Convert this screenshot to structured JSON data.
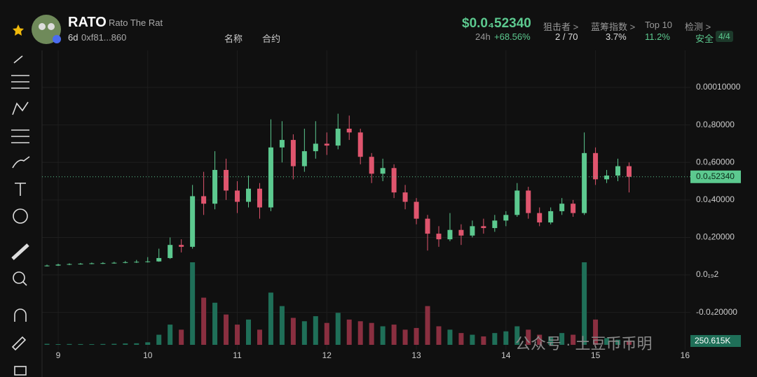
{
  "header": {
    "symbol": "RATO",
    "name": "Rato The Rat",
    "age": "6d",
    "address": "0xf81...860",
    "search_name": "名称",
    "search_contract": "合约",
    "price": "$0.0₄52340",
    "change_period": "24h",
    "change": "+68.56%",
    "snipers_label": "狙击者 >",
    "snipers": "2 / 70",
    "bluechip_label": "蓝筹指数 >",
    "bluechip": "3.7%",
    "top10_label": "Top 10",
    "top10": "11.2%",
    "check_label": "检测 >",
    "check_status": "安全",
    "check_score": "4/4"
  },
  "watermark": "公众号 · 土豆币币明",
  "chart_data": {
    "type": "candlestick",
    "x": [
      8.875,
      9,
      9.125,
      9.25,
      9.375,
      9.5,
      9.625,
      9.75,
      9.875,
      10,
      10.125,
      10.25,
      10.375,
      10.5,
      10.625,
      10.75,
      10.875,
      11,
      11.125,
      11.25,
      11.375,
      11.5,
      11.625,
      11.75,
      11.875,
      12,
      12.125,
      12.25,
      12.375,
      12.5,
      12.625,
      12.75,
      12.875,
      13,
      13.125,
      13.25,
      13.375,
      13.5,
      13.625,
      13.75,
      13.875,
      14,
      14.125,
      14.25,
      14.375,
      14.5,
      14.625,
      14.75,
      14.875,
      15,
      15.125,
      15.25,
      15.375
    ],
    "open": [
      4.8e-06,
      5e-06,
      5.5e-06,
      5.8e-06,
      6e-06,
      6.2e-06,
      6.3e-06,
      6.5e-06,
      6.8e-06,
      7e-06,
      7.2e-06,
      9e-06,
      1.6e-05,
      1.5e-05,
      4.2e-05,
      3.8e-05,
      5.6e-05,
      4.5e-05,
      3.9e-05,
      4.6e-05,
      3.6e-05,
      6.8e-05,
      7.2e-05,
      5.8e-05,
      6.6e-05,
      7e-05,
      6.9e-05,
      7.8e-05,
      7.6e-05,
      6.3e-05,
      5.4e-05,
      5.7e-05,
      4.4e-05,
      3.9e-05,
      3e-05,
      2.2e-05,
      1.9e-05,
      2.4e-05,
      2.1e-05,
      2.6e-05,
      2.5e-05,
      2.9e-05,
      3.2e-05,
      4.5e-05,
      3.3e-05,
      2.8e-05,
      3.4e-05,
      3.8e-05,
      3.3e-05,
      6.5e-05,
      5.1e-05,
      5.3e-05,
      5.8e-05
    ],
    "high": [
      5.5e-06,
      6e-06,
      6.2e-06,
      6.4e-06,
      6.6e-06,
      6.8e-06,
      7e-06,
      7.5e-06,
      8e-06,
      9.5e-06,
      1.4e-05,
      2e-05,
      1.9e-05,
      4.8e-05,
      5.5e-05,
      6.6e-05,
      6.2e-05,
      5e-05,
      5.3e-05,
      4.9e-05,
      8.3e-05,
      8.2e-05,
      7.5e-05,
      7.8e-05,
      8.2e-05,
      7.6e-05,
      8.6e-05,
      8.5e-05,
      7.8e-05,
      6.5e-05,
      6.2e-05,
      5.9e-05,
      4.8e-05,
      4.1e-05,
      3.2e-05,
      2.6e-05,
      3.3e-05,
      2.7e-05,
      2.9e-05,
      3e-05,
      3.2e-05,
      3.4e-05,
      4.9e-05,
      4.7e-05,
      3.6e-05,
      3.6e-05,
      4.1e-05,
      4e-05,
      7.6e-05,
      6.8e-05,
      5.6e-05,
      6.2e-05,
      6e-05
    ],
    "low": [
      4.5e-06,
      4.8e-06,
      5.2e-06,
      5.5e-06,
      5.7e-06,
      5.8e-06,
      6e-06,
      6.2e-06,
      6.4e-06,
      6.6e-06,
      7e-06,
      8.5e-06,
      1.2e-05,
      1.4e-05,
      3.2e-05,
      3.5e-05,
      4e-05,
      3.3e-05,
      3.6e-05,
      3e-05,
      3.4e-05,
      6e-05,
      5.1e-05,
      5.5e-05,
      6.2e-05,
      6.4e-05,
      6.7e-05,
      7.2e-05,
      5.9e-05,
      4.9e-05,
      5e-05,
      4.1e-05,
      3.5e-05,
      2.7e-05,
      1.3e-05,
      1.5e-05,
      1.8e-05,
      1.6e-05,
      2e-05,
      2.2e-05,
      2.3e-05,
      2.6e-05,
      3.1e-05,
      3e-05,
      2.6e-05,
      2.7e-05,
      3.2e-05,
      3.1e-05,
      3.2e-05,
      4.8e-05,
      4.9e-05,
      5e-05,
      4.4e-05
    ],
    "close": [
      5e-06,
      5.5e-06,
      5.8e-06,
      6e-06,
      6.2e-06,
      6.3e-06,
      6.5e-06,
      6.8e-06,
      7e-06,
      7.2e-06,
      9e-06,
      1.6e-05,
      1.5e-05,
      4.2e-05,
      3.8e-05,
      5.6e-05,
      4.5e-05,
      3.9e-05,
      4.6e-05,
      3.6e-05,
      6.8e-05,
      7.2e-05,
      5.8e-05,
      6.6e-05,
      7e-05,
      6.9e-05,
      7.8e-05,
      7.6e-05,
      6.3e-05,
      5.4e-05,
      5.7e-05,
      4.4e-05,
      3.9e-05,
      3e-05,
      2.2e-05,
      1.9e-05,
      2.4e-05,
      2.1e-05,
      2.6e-05,
      2.5e-05,
      2.9e-05,
      3.2e-05,
      4.5e-05,
      3.3e-05,
      2.8e-05,
      3.4e-05,
      3.8e-05,
      3.3e-05,
      6.5e-05,
      5.1e-05,
      5.3e-05,
      5.8e-05,
      5.234e-05
    ],
    "volume": [
      60000,
      40000,
      50000,
      45000,
      40000,
      50000,
      60000,
      80000,
      90000,
      150000,
      600000,
      1200000,
      900000,
      4900000,
      2800000,
      2500000,
      1800000,
      1200000,
      1500000,
      900000,
      3100000,
      2300000,
      1600000,
      1400000,
      1700000,
      1300000,
      1900000,
      1500000,
      1400000,
      1300000,
      1100000,
      1200000,
      900000,
      1000000,
      2300000,
      1100000,
      900000,
      700000,
      600000,
      500000,
      700000,
      800000,
      1100000,
      900000,
      600000,
      500000,
      700000,
      600000,
      4900000,
      1500000,
      400000,
      300000,
      250615
    ],
    "current_volume": {
      "value": 250615,
      "label": "250.615K"
    },
    "current_price": {
      "value": 5.234e-05,
      "label": "0.0₄52340"
    },
    "up_color": "#5cc98f",
    "down_color": "#e0556e",
    "up_volume_color": "#1f6f58",
    "down_volume_color": "#8a2f40",
    "xlim": [
      8.82,
      16.06
    ],
    "xticks": [
      9,
      10,
      11,
      12,
      13,
      14,
      15,
      16
    ],
    "ylim": [
      -3.99e-05,
      0.0001168
    ],
    "yticks": [
      {
        "value": 0.0001,
        "label": "0.00010000"
      },
      {
        "value": 8e-05,
        "label": "0.0₄80000"
      },
      {
        "value": 6e-05,
        "label": "0.0₄60000"
      },
      {
        "value": 4e-05,
        "label": "0.0₄40000"
      },
      {
        "value": 2e-05,
        "label": "0.0₄20000"
      },
      {
        "value": 2e-20,
        "label": "0.0₁₉2"
      },
      {
        "value": -2e-05,
        "label": "-0.0₄20000"
      }
    ],
    "grid": true
  }
}
